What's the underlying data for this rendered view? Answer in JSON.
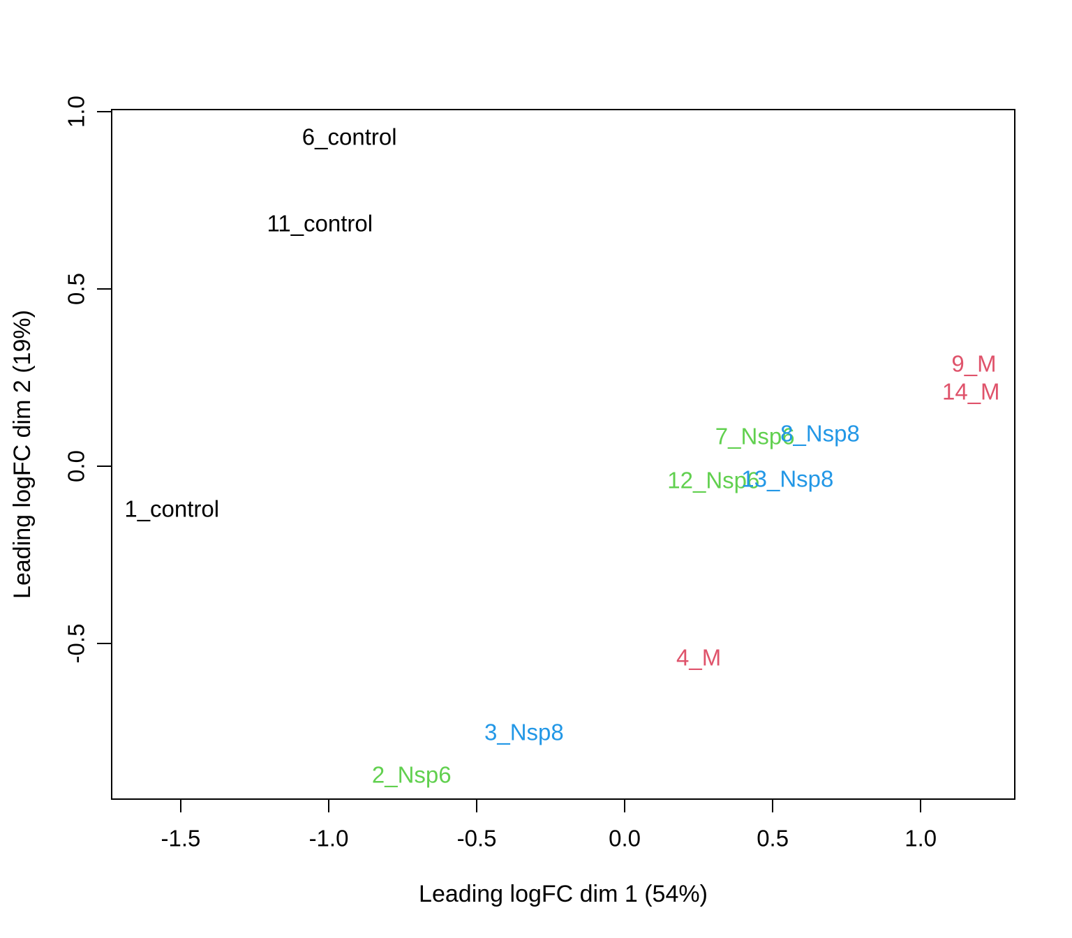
{
  "chart_data": {
    "type": "scatter",
    "title": "",
    "xlabel": "Leading logFC dim 1 (54%)",
    "ylabel": "Leading logFC dim 2 (19%)",
    "xlim": [
      -1.731,
      1.325
    ],
    "ylim": [
      -0.945,
      1.004
    ],
    "grid": false,
    "legend": "none",
    "x_ticks": [
      {
        "value": -1.5,
        "label": "-1.5"
      },
      {
        "value": -1.0,
        "label": "-1.0"
      },
      {
        "value": -0.5,
        "label": "-0.5"
      },
      {
        "value": 0.0,
        "label": "0.0"
      },
      {
        "value": 0.5,
        "label": "0.5"
      },
      {
        "value": 1.0,
        "label": "1.0"
      }
    ],
    "y_ticks": [
      {
        "value": -0.5,
        "label": "-0.5"
      },
      {
        "value": 0.0,
        "label": "0.0"
      },
      {
        "value": 0.5,
        "label": "0.5"
      },
      {
        "value": 1.0,
        "label": "1.0"
      }
    ],
    "group_colors": {
      "control": "#000000",
      "Nsp6": "#61D04F",
      "Nsp8": "#2297E6",
      "M": "#DF536B"
    },
    "points": [
      {
        "label": "1_control",
        "group": "control",
        "x": -1.53,
        "y": -0.12
      },
      {
        "label": "2_Nsp6",
        "group": "Nsp6",
        "x": -0.72,
        "y": -0.87
      },
      {
        "label": "3_Nsp8",
        "group": "Nsp8",
        "x": -0.34,
        "y": -0.75
      },
      {
        "label": "4_M",
        "group": "M",
        "x": 0.25,
        "y": -0.54
      },
      {
        "label": "6_control",
        "group": "control",
        "x": -0.93,
        "y": 0.93
      },
      {
        "label": "7_Nsp6",
        "group": "Nsp6",
        "x": 0.44,
        "y": 0.085
      },
      {
        "label": "8_Nsp8",
        "group": "Nsp8",
        "x": 0.66,
        "y": 0.093
      },
      {
        "label": "9_M",
        "group": "M",
        "x": 1.18,
        "y": 0.29
      },
      {
        "label": "11_control",
        "group": "control",
        "x": -1.03,
        "y": 0.685
      },
      {
        "label": "12_Nsp6",
        "group": "Nsp6",
        "x": 0.3,
        "y": -0.04
      },
      {
        "label": "13_Nsp8",
        "group": "Nsp8",
        "x": 0.55,
        "y": -0.035
      },
      {
        "label": "14_M",
        "group": "M",
        "x": 1.17,
        "y": 0.21
      }
    ]
  }
}
